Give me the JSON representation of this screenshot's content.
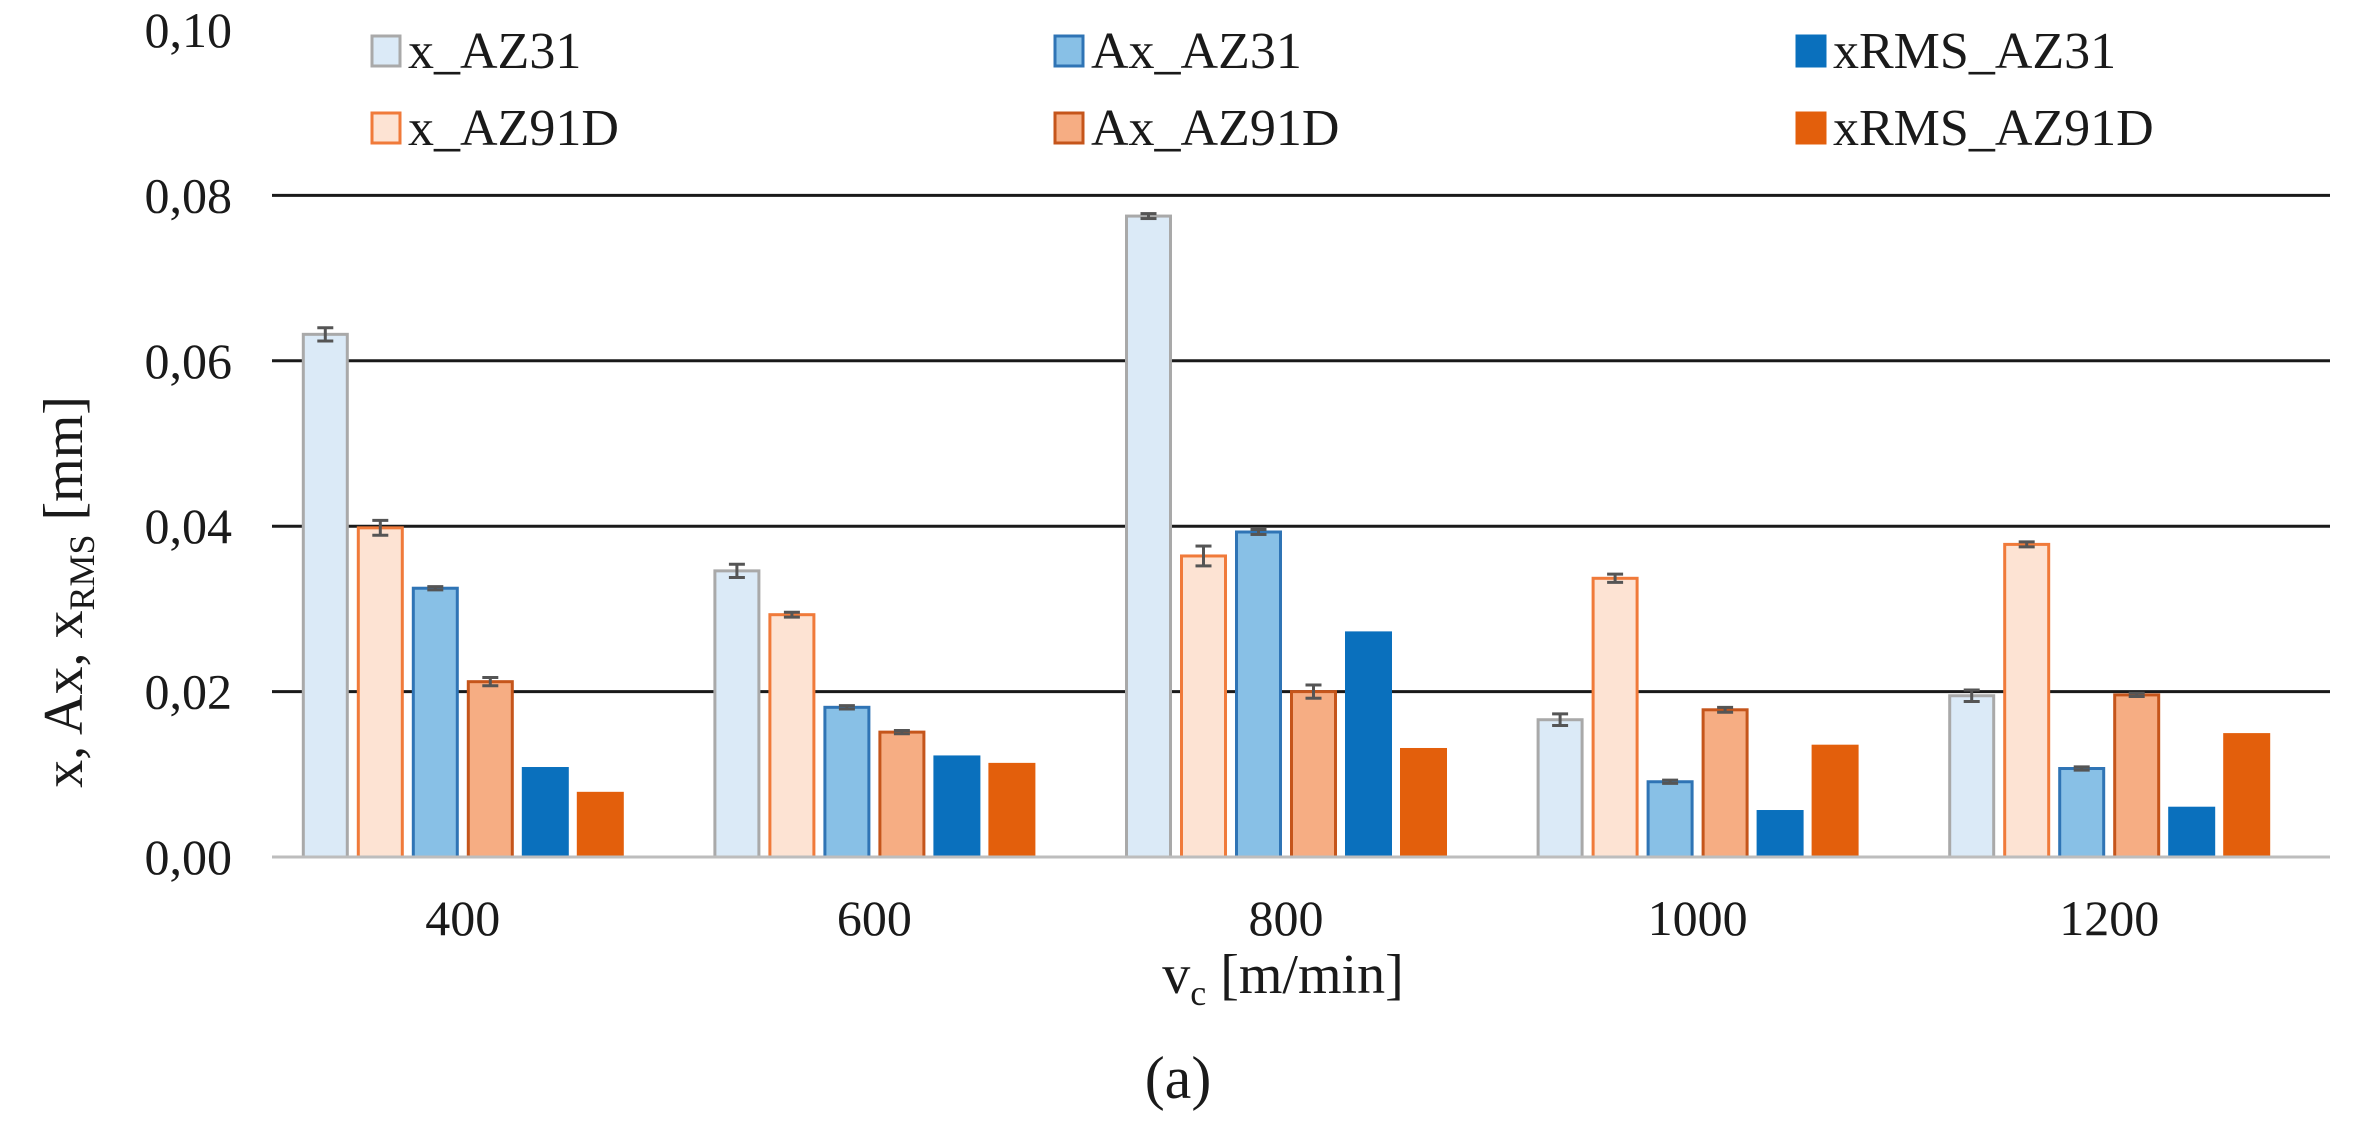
{
  "chart_data": {
    "type": "bar",
    "categories": [
      "400",
      "600",
      "800",
      "1000",
      "1200"
    ],
    "series": [
      {
        "name": "x_AZ31",
        "values": [
          0.0632,
          0.0346,
          0.0775,
          0.0166,
          0.0195
        ],
        "errors": [
          0.0008,
          0.0008,
          0.0003,
          0.0007,
          0.0007
        ],
        "fill": "#dbeaf7",
        "stroke": "#a9a9a9"
      },
      {
        "name": "x_AZ91D",
        "values": [
          0.0398,
          0.0293,
          0.0364,
          0.0337,
          0.0378
        ],
        "errors": [
          0.0009,
          0.0003,
          0.0012,
          0.0005,
          0.0003
        ],
        "fill": "#fde3d3",
        "stroke": "#f07a3a"
      },
      {
        "name": "Ax_AZ31",
        "values": [
          0.0325,
          0.0181,
          0.0393,
          0.0091,
          0.0107
        ],
        "errors": [
          0.0002,
          0.0002,
          0.0003,
          0.0002,
          0.0002
        ],
        "fill": "#88c0e6",
        "stroke": "#2f74b5"
      },
      {
        "name": "Ax_AZ91D",
        "values": [
          0.0212,
          0.0151,
          0.02,
          0.0178,
          0.0196
        ],
        "errors": [
          0.0005,
          0.0002,
          0.0008,
          0.0003,
          0.0002
        ],
        "fill": "#f6ad83",
        "stroke": "#c5551b"
      },
      {
        "name": "xRMS_AZ31",
        "values": [
          0.0107,
          0.0121,
          0.0271,
          0.0055,
          0.0059
        ],
        "errors": [
          0,
          0,
          0,
          0,
          0
        ],
        "fill": "#0a70bd",
        "stroke": "#0a70bd"
      },
      {
        "name": "xRMS_AZ91D",
        "values": [
          0.0077,
          0.0112,
          0.013,
          0.0134,
          0.0148
        ],
        "errors": [
          0,
          0,
          0,
          0,
          0
        ],
        "fill": "#e35f0c",
        "stroke": "#e35f0c"
      }
    ],
    "legend_order": [
      "x_AZ31",
      "Ax_AZ31",
      "xRMS_AZ31",
      "x_AZ91D",
      "Ax_AZ91D",
      "xRMS_AZ91D"
    ],
    "y_ticks": [
      0,
      0.02,
      0.04,
      0.06,
      0.08,
      0.1
    ],
    "y_tick_labels": [
      "0,00",
      "0,02",
      "0,04",
      "0,06",
      "0,08",
      "0,10"
    ],
    "ylim": [
      0,
      0.1
    ],
    "xlabel": "v",
    "xlabel_sub": "c",
    "xlabel_rest": " [m/min]",
    "ylabel": "x, Ax, x",
    "ylabel_sub": "RMS",
    "ylabel_rest": " [mm]",
    "legend_position": "top",
    "grid": true,
    "caption": "(a)"
  }
}
